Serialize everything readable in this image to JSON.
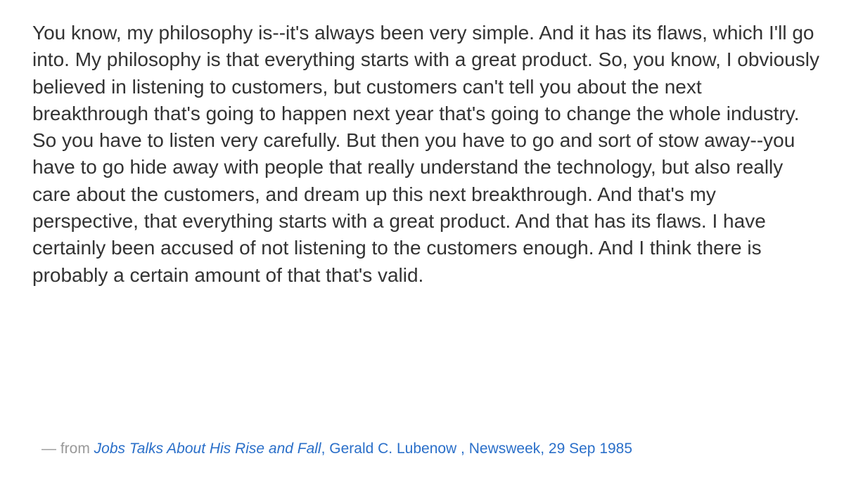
{
  "quote": {
    "text": "You know, my philosophy is--it's always been very simple. And it has its flaws, which I'll go into. My philosophy is that everything starts with a great product. So, you know, I obviously believed in listening to customers, but customers can't tell you about the next breakthrough that's going to happen next year that's going to change the whole industry. So you have to listen very carefully. But then you have to go and sort of stow away--you have to go hide away with people that really understand the technology, but also really care about the customers, and dream up this next breakthrough. And that's my perspective, that everything starts with a great product. And that has its flaws. I have certainly been accused of not listening to the customers enough. And I think there is probably a certain amount of that that's valid."
  },
  "attribution": {
    "prefix": "— from ",
    "title": "Jobs Talks About His Rise and Fall",
    "details": ", Gerald C. Lubenow , Newsweek, 29 Sep 1985"
  },
  "colors": {
    "body_text": "#333333",
    "muted_text": "#999999",
    "link": "#2a6fc9"
  }
}
